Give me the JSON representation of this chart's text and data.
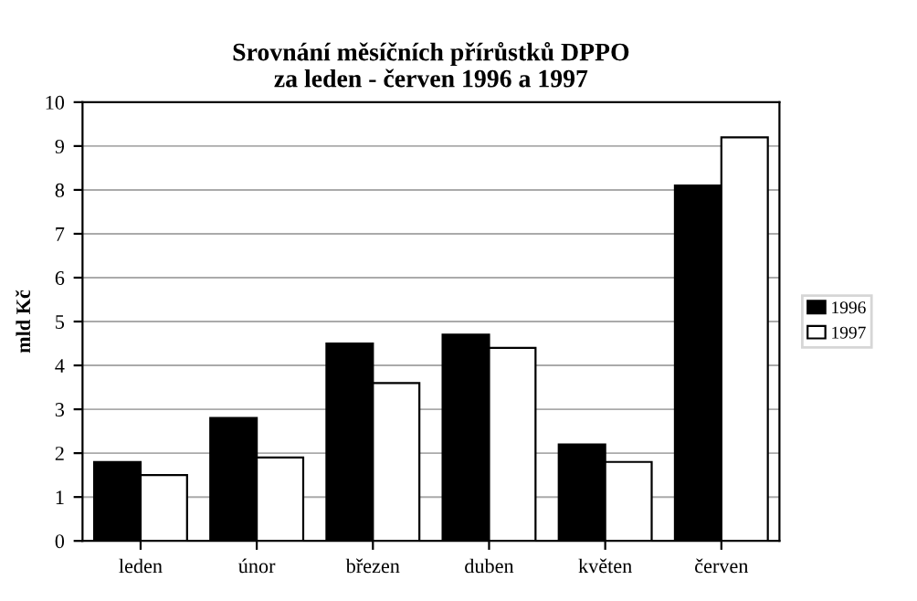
{
  "chart_data": {
    "type": "bar",
    "title": "Srovnání měsíčních přírůstků DPPO\nza leden - červen 1996 a 1997",
    "ylabel": "mld Kč",
    "categories": [
      "leden",
      "únor",
      "březen",
      "duben",
      "květen",
      "červen"
    ],
    "series": [
      {
        "name": "1996",
        "color": "#000000",
        "values": [
          1.8,
          2.8,
          4.5,
          4.7,
          2.2,
          8.1
        ]
      },
      {
        "name": "1997",
        "color": "#ffffff",
        "values": [
          1.5,
          1.9,
          3.6,
          4.4,
          1.8,
          9.2
        ]
      }
    ],
    "ylim": [
      0,
      10
    ],
    "yticks": [
      0,
      1,
      2,
      3,
      4,
      5,
      6,
      7,
      8,
      9,
      10
    ],
    "grid": "y",
    "legend": "right"
  }
}
